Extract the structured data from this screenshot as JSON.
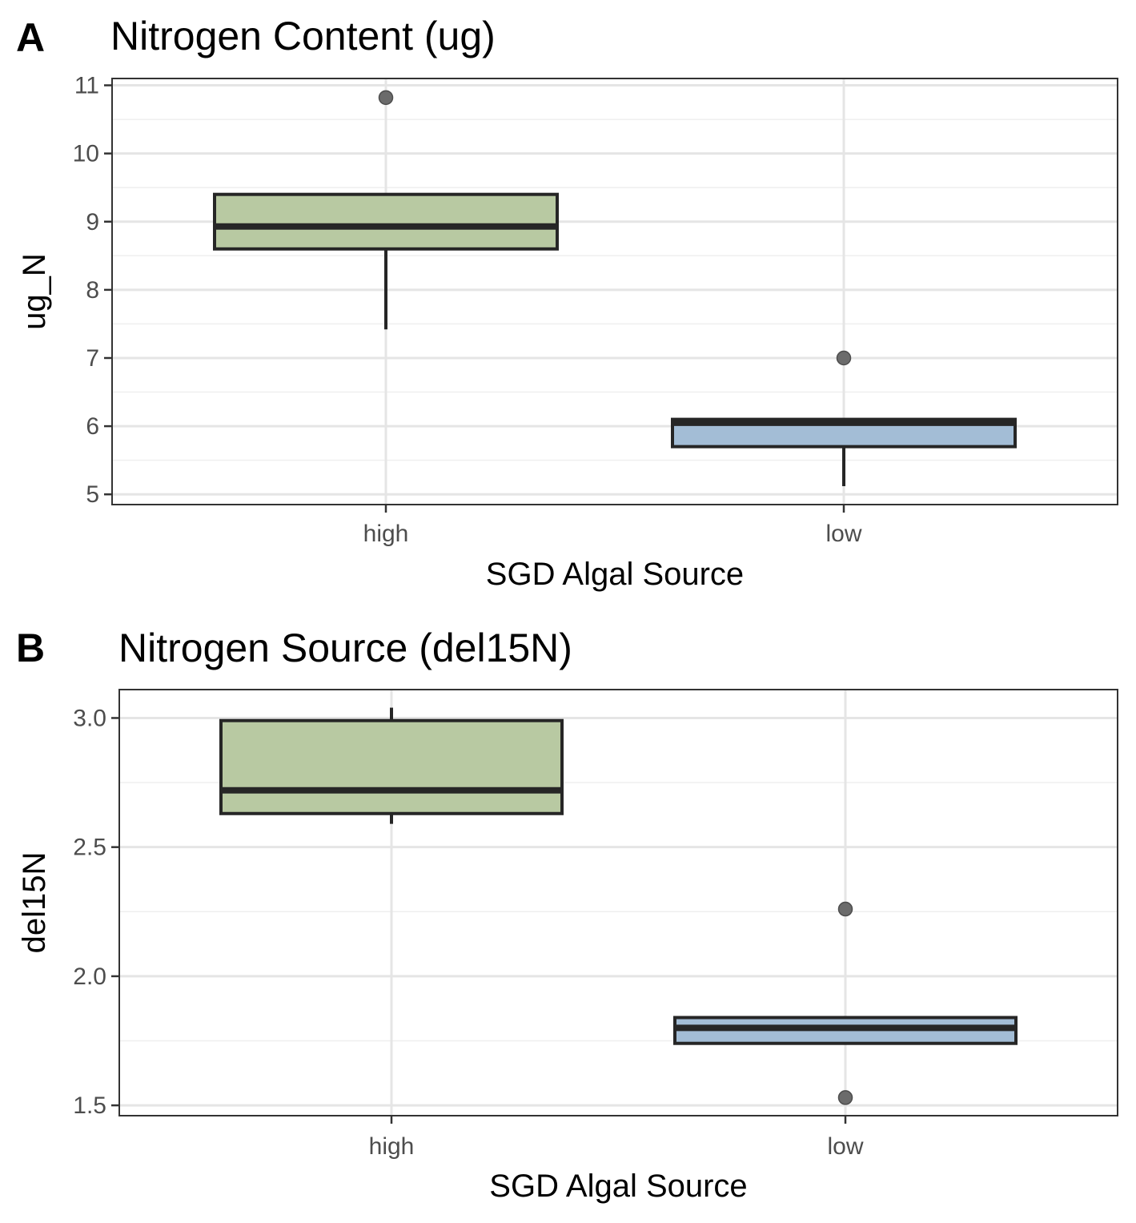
{
  "colors": {
    "high": "#b8c9a2",
    "low": "#a3bdd6",
    "box_stroke": "#262626",
    "outlier": "#6b6b6b",
    "grid_major": "#e5e5e5",
    "grid_minor": "#efefef",
    "panel_border": "#333333"
  },
  "chart_data": [
    {
      "type": "boxplot",
      "tag": "A",
      "title": "Nitrogen Content (ug)",
      "xlabel": "SGD Algal Source",
      "ylabel": "ug_N",
      "categories": [
        "high",
        "low"
      ],
      "ylim": [
        4.85,
        11.1
      ],
      "yticks": [
        5,
        6,
        7,
        8,
        9,
        10,
        11
      ],
      "ytick_labels": [
        "5",
        "6",
        "7",
        "8",
        "9",
        "10",
        "11"
      ],
      "grid": true,
      "boxes": [
        {
          "category": "high",
          "whisker_low": 7.42,
          "q1": 8.6,
          "median": 8.93,
          "q3": 9.4,
          "whisker_high": 9.4,
          "outliers": [
            10.82
          ]
        },
        {
          "category": "low",
          "whisker_low": 5.12,
          "q1": 5.7,
          "median": 6.05,
          "q3": 6.1,
          "whisker_high": 6.1,
          "outliers": [
            7.0
          ]
        }
      ]
    },
    {
      "type": "boxplot",
      "tag": "B",
      "title": "Nitrogen Source (del15N)",
      "xlabel": "SGD Algal Source",
      "ylabel": "del15N",
      "categories": [
        "high",
        "low"
      ],
      "ylim": [
        1.46,
        3.11
      ],
      "yticks": [
        1.5,
        2.0,
        2.5,
        3.0
      ],
      "ytick_labels": [
        "1.5",
        "2.0",
        "2.5",
        "3.0"
      ],
      "grid": true,
      "boxes": [
        {
          "category": "high",
          "whisker_low": 2.59,
          "q1": 2.63,
          "median": 2.72,
          "q3": 2.99,
          "whisker_high": 3.04,
          "outliers": []
        },
        {
          "category": "low",
          "whisker_low": 1.74,
          "q1": 1.74,
          "median": 1.8,
          "q3": 1.84,
          "whisker_high": 1.84,
          "outliers": [
            2.26,
            1.53
          ]
        }
      ]
    }
  ]
}
